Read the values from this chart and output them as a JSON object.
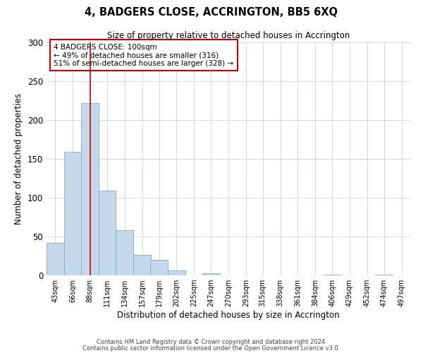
{
  "title": "4, BADGERS CLOSE, ACCRINGTON, BB5 6XQ",
  "subtitle": "Size of property relative to detached houses in Accrington",
  "xlabel": "Distribution of detached houses by size in Accrington",
  "ylabel": "Number of detached properties",
  "bar_color": "#c5d8ec",
  "bar_edge_color": "#7aaed0",
  "vline_color": "#cc0000",
  "vline_x": 100,
  "categories": [
    "43sqm",
    "66sqm",
    "88sqm",
    "111sqm",
    "134sqm",
    "157sqm",
    "179sqm",
    "202sqm",
    "225sqm",
    "247sqm",
    "270sqm",
    "293sqm",
    "315sqm",
    "338sqm",
    "361sqm",
    "384sqm",
    "406sqm",
    "429sqm",
    "452sqm",
    "474sqm",
    "497sqm"
  ],
  "bin_edges": [
    43,
    66,
    88,
    111,
    134,
    157,
    179,
    202,
    225,
    247,
    270,
    293,
    315,
    338,
    361,
    384,
    406,
    429,
    452,
    474,
    497
  ],
  "values": [
    42,
    159,
    222,
    109,
    58,
    26,
    20,
    6,
    0,
    3,
    0,
    0,
    0,
    0,
    0,
    0,
    1,
    0,
    0,
    1,
    0
  ],
  "ylim": [
    0,
    300
  ],
  "yticks": [
    0,
    50,
    100,
    150,
    200,
    250,
    300
  ],
  "annotation_text": "4 BADGERS CLOSE: 100sqm\n← 49% of detached houses are smaller (316)\n51% of semi-detached houses are larger (328) →",
  "annotation_box_color": "#ffffff",
  "annotation_box_edge": "#cc0000",
  "footer1": "Contains HM Land Registry data © Crown copyright and database right 2024.",
  "footer2": "Contains public sector information licensed under the Open Government Licence v3.0.",
  "background_color": "#ffffff",
  "grid_color": "#cdd8ea"
}
